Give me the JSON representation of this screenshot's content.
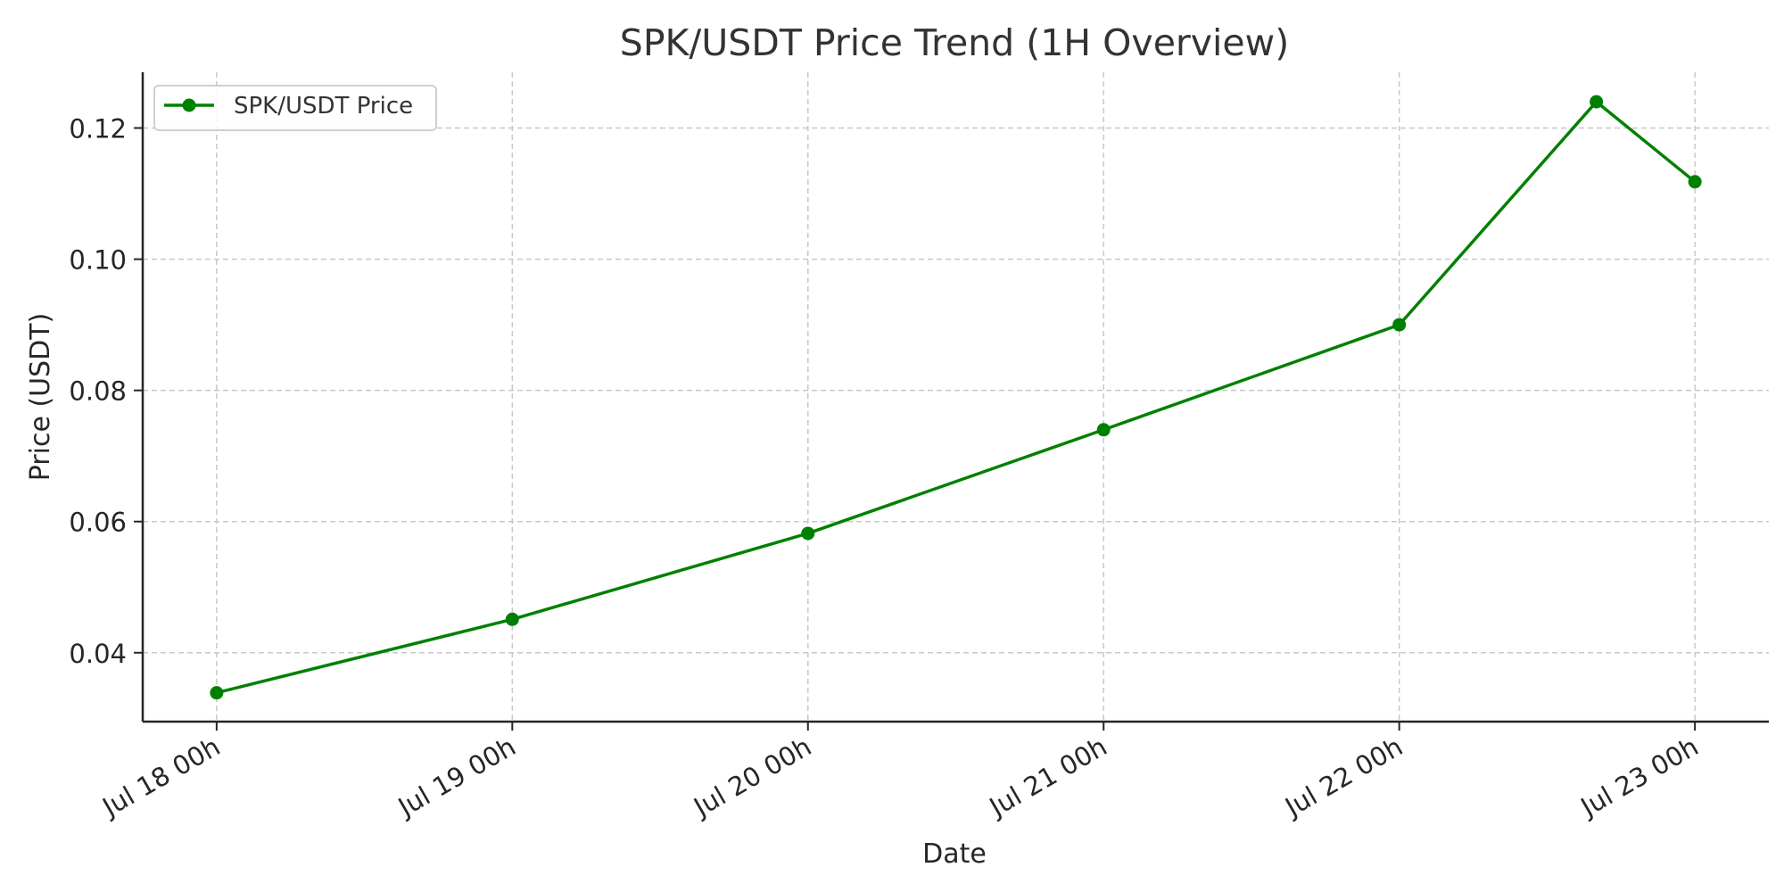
{
  "chart_data": {
    "type": "line",
    "title": "SPK/USDT Price Trend (1H Overview)",
    "xlabel": "Date",
    "ylabel": "Price (USDT)",
    "x_tick_labels": [
      "Jul 18 00h",
      "Jul 19 00h",
      "Jul 20 00h",
      "Jul 21 00h",
      "Jul 22 00h",
      "Jul 23 00h"
    ],
    "y_tick_labels": [
      "0.04",
      "0.06",
      "0.08",
      "0.10",
      "0.12"
    ],
    "y_ticks": [
      0.04,
      0.06,
      0.08,
      0.1,
      0.12
    ],
    "ylim": [
      0.0295,
      0.1285
    ],
    "xlim": [
      "2025-07-17T18:00",
      "2025-07-23T06:00"
    ],
    "grid": true,
    "legend_position": "top-left",
    "series": [
      {
        "name": "SPK/USDT Price",
        "color": "#008000",
        "marker": "circle",
        "x": [
          "2025-07-18T00:00",
          "2025-07-19T00:00",
          "2025-07-20T00:00",
          "2025-07-21T00:00",
          "2025-07-22T00:00",
          "2025-07-22T16:00",
          "2025-07-23T00:00"
        ],
        "values": [
          0.0339,
          0.0451,
          0.0582,
          0.074,
          0.09,
          0.124,
          0.1118
        ]
      }
    ]
  }
}
